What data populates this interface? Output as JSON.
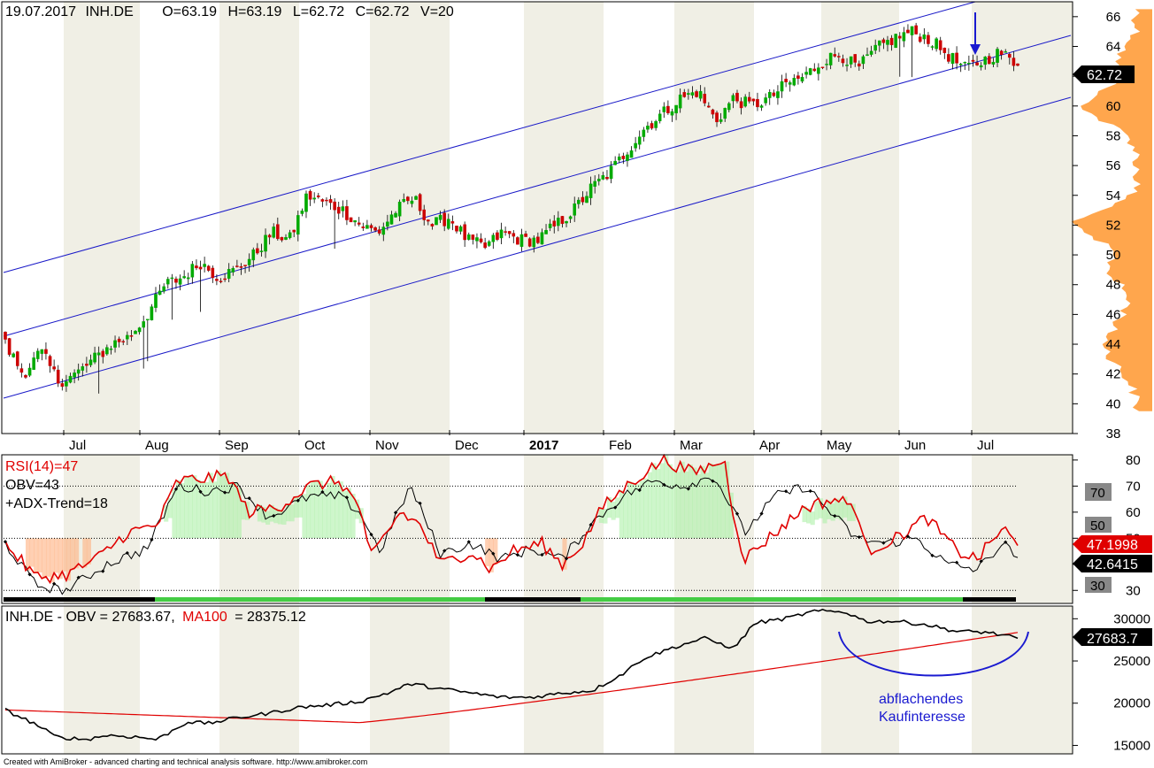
{
  "header": {
    "date": "19.07.2017",
    "symbol": "INH.DE",
    "open": "O=63.19",
    "high": "H=63.19",
    "low": "L=62.72",
    "close": "C=62.72",
    "volume": "V=20"
  },
  "price_badge": "62.72",
  "rsi_panel": {
    "label_rsi": "RSI(14)=47",
    "label_obv": "OBV=43",
    "label_adx": "+ADX-Trend=18",
    "badge_rsi": "47.1998",
    "badge_obv": "42.6415",
    "level_70": "70",
    "level_50": "50",
    "level_30": "30"
  },
  "obv_panel": {
    "label_a": "INH.DE - OBV = 27683.67,",
    "label_b": "MA100",
    "label_c": "= 28375.12",
    "badge": "27683.7"
  },
  "annotation": {
    "line1": "abflachendes",
    "line2": "Kaufinteresse"
  },
  "footer": "Created with AmiBroker - advanced charting and technical analysis software. http://www.amibroker.com",
  "colors": {
    "up": "#00aa00",
    "down": "#cc0000",
    "channel": "#1a1ac8",
    "rsi": "#e00000",
    "obv": "#000000",
    "profile": "#ffa64d",
    "trend_on": "#44cc44",
    "trend_off": "#000000"
  },
  "chart_data": [
    {
      "type": "candlestick",
      "ylim": [
        38,
        67
      ],
      "y_ticks": [
        "38",
        "40",
        "42",
        "44",
        "46",
        "48",
        "50",
        "52",
        "54",
        "56",
        "58",
        "60",
        "62",
        "64",
        "66"
      ],
      "x_ticks": [
        "Jul",
        "Aug",
        "Sep",
        "Oct",
        "Nov",
        "Dec",
        "2017",
        "Feb",
        "Mar",
        "Apr",
        "May",
        "Jun",
        "Jul"
      ],
      "close_path": [
        [
          "Jul",
          44.0
        ],
        [
          "Jul",
          42.0
        ],
        [
          "Jul",
          43.5
        ],
        [
          "Jul",
          41.5
        ],
        [
          "Jul",
          42.0
        ],
        [
          "Aug",
          43.0
        ],
        [
          "Aug",
          44.0
        ],
        [
          "Aug",
          44.5
        ],
        [
          "Aug",
          46.0
        ],
        [
          "Aug",
          48.0
        ],
        [
          "Sep",
          48.5
        ],
        [
          "Sep",
          49.5
        ],
        [
          "Sep",
          48.5
        ],
        [
          "Sep",
          49.0
        ],
        [
          "Sep",
          50.0
        ],
        [
          "Oct",
          51.5
        ],
        [
          "Oct",
          51.0
        ],
        [
          "Oct",
          54.0
        ],
        [
          "Oct",
          53.5
        ],
        [
          "Oct",
          53.0
        ],
        [
          "Nov",
          52.0
        ],
        [
          "Nov",
          51.5
        ],
        [
          "Nov",
          53.0
        ],
        [
          "Nov",
          53.8
        ],
        [
          "Nov",
          52.0
        ],
        [
          "Dec",
          52.5
        ],
        [
          "Dec",
          51.0
        ],
        [
          "Dec",
          50.5
        ],
        [
          "Dec",
          51.5
        ],
        [
          "Dec",
          51.0
        ],
        [
          "2017",
          51.0
        ],
        [
          "2017",
          52.0
        ],
        [
          "2017",
          53.0
        ],
        [
          "2017",
          54.5
        ],
        [
          "Feb",
          55.5
        ],
        [
          "Feb",
          57.0
        ],
        [
          "Feb",
          58.5
        ],
        [
          "Feb",
          59.5
        ],
        [
          "Mar",
          60.5
        ],
        [
          "Mar",
          61.0
        ],
        [
          "Mar",
          59.0
        ],
        [
          "Mar",
          60.5
        ],
        [
          "Apr",
          60.0
        ],
        [
          "Apr",
          60.5
        ],
        [
          "Apr",
          61.5
        ],
        [
          "Apr",
          62.0
        ],
        [
          "May",
          63.0
        ],
        [
          "May",
          63.5
        ],
        [
          "May",
          62.5
        ],
        [
          "May",
          63.8
        ],
        [
          "Jun",
          64.5
        ],
        [
          "Jun",
          65.0
        ],
        [
          "Jun",
          64.5
        ],
        [
          "Jun",
          63.5
        ],
        [
          "Jul",
          62.5
        ],
        [
          "Jul",
          63.0
        ],
        [
          "Jul",
          63.6
        ],
        [
          "Jul",
          62.72
        ]
      ],
      "volume_profile_peak": 52,
      "volume_profile_secondary": 60
    },
    {
      "type": "line",
      "series": [
        {
          "name": "RSI(14)",
          "last": 47.1998
        },
        {
          "name": "OBV",
          "last": 42.6415
        }
      ],
      "ylim": [
        25,
        82
      ],
      "y_ticks": [
        "30",
        "40",
        "50",
        "60",
        "70",
        "80"
      ],
      "levels": [
        30,
        50,
        70
      ]
    },
    {
      "type": "line",
      "series": [
        {
          "name": "OBV",
          "last": 27683.67
        },
        {
          "name": "MA100",
          "last": 28375.12
        }
      ],
      "ylim": [
        14000,
        31500
      ],
      "y_ticks": [
        "15000",
        "20000",
        "25000",
        "30000"
      ]
    }
  ]
}
